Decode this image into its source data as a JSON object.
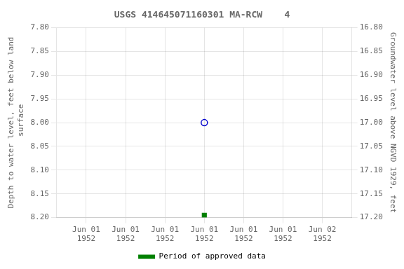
{
  "chart_data": {
    "type": "scatter",
    "title": "USGS 414645071160301 MA-RCW    4",
    "ylabel": "Depth to water level, feet below land\n surface",
    "y2label": "Groundwater level above NGVD 1929, feet",
    "x": [
      0.5
    ],
    "series": [
      {
        "color": "#0000cc",
        "marker": "open_circle",
        "values": [
          8.0
        ]
      },
      {
        "name": "Period of approved data",
        "color": "#008000",
        "marker": "square",
        "values": [
          8.195
        ]
      }
    ],
    "xlim": [
      -0.125,
      1.125
    ],
    "xticks": [
      {
        "value": 0.0,
        "label": "Jun 01\n1952"
      },
      {
        "value": 0.1667,
        "label": "Jun 01\n1952"
      },
      {
        "value": 0.3333,
        "label": "Jun 01\n1952"
      },
      {
        "value": 0.5,
        "label": "Jun 01\n1952"
      },
      {
        "value": 0.6667,
        "label": "Jun 01\n1952"
      },
      {
        "value": 0.8333,
        "label": "Jun 01\n1952"
      },
      {
        "value": 1.0,
        "label": "Jun 02\n1952"
      }
    ],
    "ylim": [
      8.2,
      7.8
    ],
    "yticks": [
      {
        "value": 7.8,
        "label": "7.80"
      },
      {
        "value": 7.85,
        "label": "7.85"
      },
      {
        "value": 7.9,
        "label": "7.90"
      },
      {
        "value": 7.95,
        "label": "7.95"
      },
      {
        "value": 8.0,
        "label": "8.00"
      },
      {
        "value": 8.05,
        "label": "8.05"
      },
      {
        "value": 8.1,
        "label": "8.10"
      },
      {
        "value": 8.15,
        "label": "8.15"
      },
      {
        "value": 8.2,
        "label": "8.20"
      }
    ],
    "y2lim": [
      17.2,
      16.8
    ],
    "y2ticks": [
      {
        "value": 17.2,
        "label": "17.20"
      },
      {
        "value": 17.15,
        "label": "17.15"
      },
      {
        "value": 17.1,
        "label": "17.10"
      },
      {
        "value": 17.05,
        "label": "17.05"
      },
      {
        "value": 17.0,
        "label": "17.00"
      },
      {
        "value": 16.95,
        "label": "16.95"
      },
      {
        "value": 16.9,
        "label": "16.90"
      },
      {
        "value": 16.85,
        "label": "16.85"
      },
      {
        "value": 16.8,
        "label": "16.80"
      }
    ],
    "grid": true,
    "legend": "bottom"
  }
}
